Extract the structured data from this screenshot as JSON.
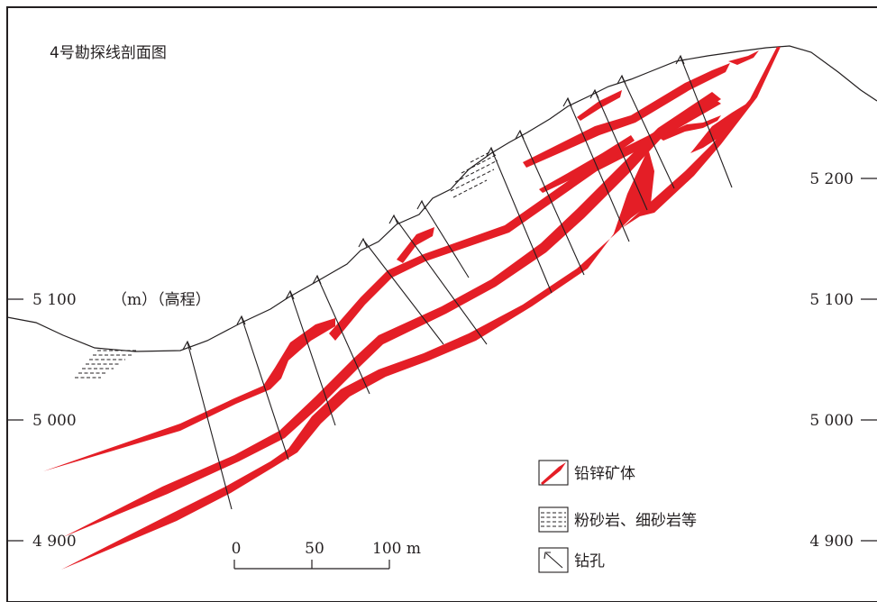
{
  "title": "4号勘探线剖面图",
  "axis_title": "（m）（高程）",
  "left_ticks": [
    "5 100",
    "5 000",
    "4 900"
  ],
  "right_ticks": [
    "5 200",
    "5 100",
    "5 000",
    "4 900"
  ],
  "scale_bar": {
    "labels": [
      "0",
      "50",
      "100 m"
    ]
  },
  "legend": [
    {
      "key": "ore",
      "label": "铅锌矿体"
    },
    {
      "key": "siltstone",
      "label": "粉砂岩、细砂岩等"
    },
    {
      "key": "drillhole",
      "label": "钻孔"
    }
  ],
  "colors": {
    "ore": "#e41e26",
    "line": "#231f20",
    "background": "#ffffff"
  }
}
